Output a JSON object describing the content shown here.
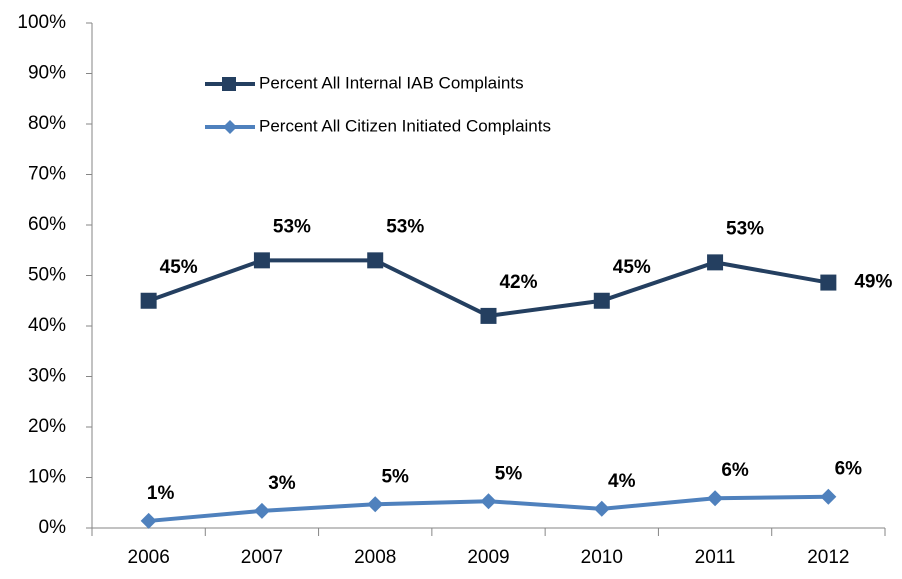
{
  "chart_data": {
    "type": "line",
    "categories": [
      "2006",
      "2007",
      "2008",
      "2009",
      "2010",
      "2011",
      "2012"
    ],
    "series": [
      {
        "name": "Percent All Internal IAB Complaints",
        "color": "#243f60",
        "values": [
          45,
          53,
          53,
          42,
          45,
          52.6,
          48.6
        ],
        "value_labels": [
          "45%",
          "53%",
          "53%",
          "42%",
          "45%",
          "53%",
          "49%"
        ]
      },
      {
        "name": "Percent All Citizen Initiated Complaints",
        "color": "#4f81bd",
        "values": [
          1.4,
          3.4,
          4.7,
          5.3,
          3.8,
          5.9,
          6.2
        ],
        "value_labels": [
          "1%",
          "3%",
          "5%",
          "5%",
          "4%",
          "6%",
          "6%"
        ]
      }
    ],
    "ylim": [
      0,
      100
    ],
    "yticks": [
      {
        "value": 0,
        "label": "0%"
      },
      {
        "value": 10,
        "label": "10%"
      },
      {
        "value": 20,
        "label": "20%"
      },
      {
        "value": 30,
        "label": "30%"
      },
      {
        "value": 40,
        "label": "40%"
      },
      {
        "value": 50,
        "label": "50%"
      },
      {
        "value": 60,
        "label": "60%"
      },
      {
        "value": 70,
        "label": "70%"
      },
      {
        "value": 80,
        "label": "80%"
      },
      {
        "value": 90,
        "label": "90%"
      },
      {
        "value": 100,
        "label": "100%"
      }
    ]
  }
}
